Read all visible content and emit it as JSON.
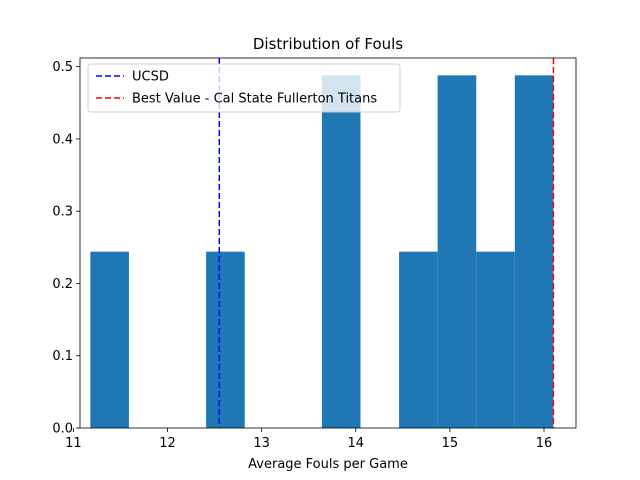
{
  "chart_data": {
    "type": "bar",
    "title": "Distribution of Fouls",
    "xlabel": "Average Fouls per Game",
    "ylabel": "",
    "xlim": [
      11.07,
      16.34
    ],
    "ylim": [
      0,
      0.512
    ],
    "xticks": [
      11,
      12,
      13,
      14,
      15,
      16
    ],
    "yticks": [
      0.0,
      0.1,
      0.2,
      0.3,
      0.4,
      0.5
    ],
    "bar_color": "#1f77b4",
    "bins": [
      {
        "x0": 11.18,
        "x1": 11.59,
        "height": 0.244
      },
      {
        "x0": 11.59,
        "x1": 12.0,
        "height": 0
      },
      {
        "x0": 12.0,
        "x1": 12.41,
        "height": 0
      },
      {
        "x0": 12.41,
        "x1": 12.82,
        "height": 0.244
      },
      {
        "x0": 12.82,
        "x1": 13.23,
        "height": 0
      },
      {
        "x0": 13.23,
        "x1": 13.64,
        "height": 0
      },
      {
        "x0": 13.64,
        "x1": 14.05,
        "height": 0.488
      },
      {
        "x0": 14.05,
        "x1": 14.46,
        "height": 0
      },
      {
        "x0": 14.46,
        "x1": 14.87,
        "height": 0.244
      },
      {
        "x0": 14.87,
        "x1": 15.28,
        "height": 0.488
      },
      {
        "x0": 15.28,
        "x1": 15.69,
        "height": 0.244
      },
      {
        "x0": 15.69,
        "x1": 16.1,
        "height": 0.488
      }
    ],
    "reference_lines": [
      {
        "name": "UCSD",
        "x": 12.55,
        "color": "#0000ff",
        "style": "dashed"
      },
      {
        "name": "Best Value - Cal State Fullerton Titans",
        "x": 16.1,
        "color": "#ff0000",
        "style": "dashed"
      }
    ],
    "legend_position": "upper-left",
    "grid": false
  }
}
